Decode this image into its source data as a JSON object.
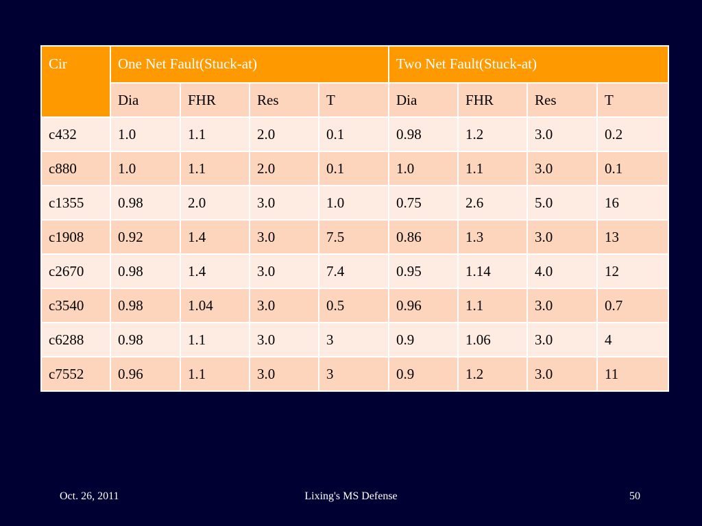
{
  "table": {
    "header": {
      "cir": "Cir",
      "group1": "One Net Fault(Stuck-at)",
      "group2": "Two Net Fault(Stuck-at)"
    },
    "subheaders": [
      "Dia",
      "FHR",
      "Res",
      "T",
      "Dia",
      "FHR",
      "Res",
      "T"
    ],
    "rows": [
      {
        "cir": "c432",
        "cells": [
          "1.0",
          "1.1",
          "2.0",
          "0.1",
          "0.98",
          "1.2",
          "3.0",
          "0.2"
        ]
      },
      {
        "cir": "c880",
        "cells": [
          "1.0",
          "1.1",
          "2.0",
          "0.1",
          "1.0",
          "1.1",
          "3.0",
          "0.1"
        ]
      },
      {
        "cir": "c1355",
        "cells": [
          "0.98",
          "2.0",
          "3.0",
          "1.0",
          "0.75",
          "2.6",
          "5.0",
          "16"
        ]
      },
      {
        "cir": "c1908",
        "cells": [
          "0.92",
          "1.4",
          "3.0",
          "7.5",
          "0.86",
          "1.3",
          "3.0",
          "13"
        ]
      },
      {
        "cir": "c2670",
        "cells": [
          "0.98",
          "1.4",
          "3.0",
          "7.4",
          "0.95",
          "1.14",
          "4.0",
          "12"
        ]
      },
      {
        "cir": "c3540",
        "cells": [
          "0.98",
          "1.04",
          "3.0",
          "0.5",
          "0.96",
          "1.1",
          "3.0",
          "0.7"
        ]
      },
      {
        "cir": "c6288",
        "cells": [
          "0.98",
          "1.1",
          "3.0",
          "3",
          "0.9",
          "1.06",
          "3.0",
          "4"
        ]
      },
      {
        "cir": "c7552",
        "cells": [
          "0.96",
          "1.1",
          "3.0",
          "3",
          "0.9",
          "1.2",
          "3.0",
          "11"
        ]
      }
    ]
  },
  "footer": {
    "date": "Oct. 26, 2011",
    "title": "Lixing's MS Defense",
    "page": "50"
  },
  "colors": {
    "background": "#000033",
    "header": "#ff9900",
    "row_dark": "#fcd5bc",
    "row_light": "#feebe2"
  }
}
